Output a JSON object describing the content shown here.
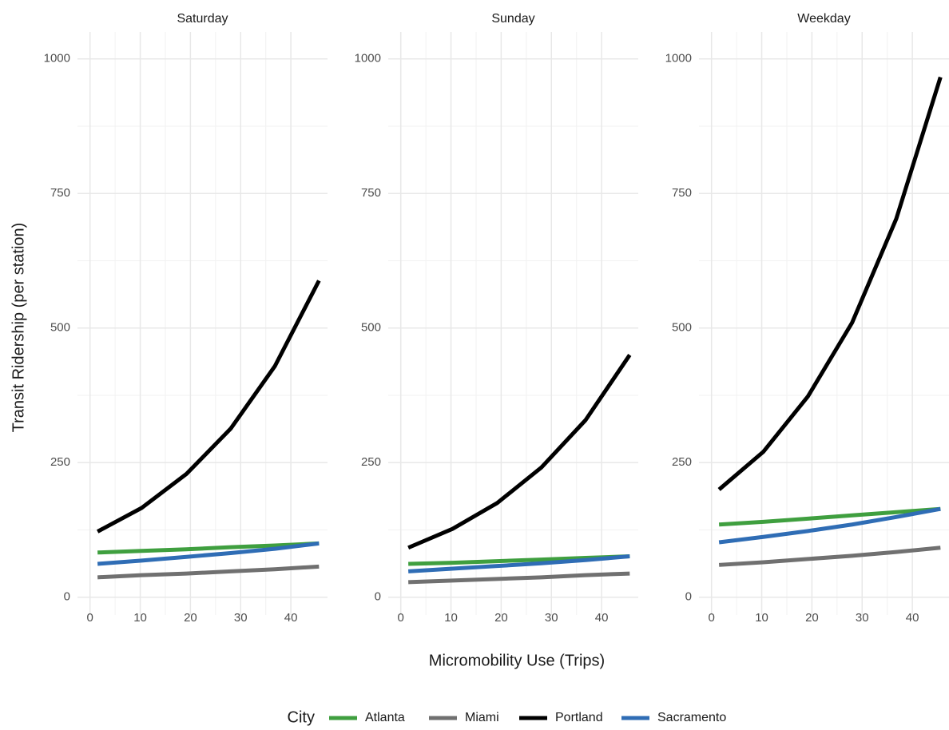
{
  "chart_data": [
    {
      "type": "line",
      "title": "Saturday",
      "x": [
        1.5,
        10.3,
        19.2,
        28,
        36.8,
        45.6
      ],
      "xlim": [
        -2.5,
        47.3
      ],
      "ylim": [
        -33,
        1050
      ],
      "xticks": [
        0,
        10,
        20,
        30,
        40
      ],
      "yticks": [
        0,
        250,
        500,
        750,
        1000
      ],
      "grid": true,
      "series": [
        {
          "name": "Atlanta",
          "color": "#3f9f3f",
          "values": [
            83,
            86,
            89,
            93,
            96,
            100
          ]
        },
        {
          "name": "Miami",
          "color": "#707070",
          "values": [
            37,
            41,
            44,
            48,
            52,
            57
          ]
        },
        {
          "name": "Portland",
          "color": "#000000",
          "values": [
            122,
            166,
            229,
            313,
            429,
            588
          ]
        },
        {
          "name": "Sacramento",
          "color": "#2f6db5",
          "values": [
            62,
            68,
            75,
            82,
            90,
            100
          ]
        }
      ]
    },
    {
      "type": "line",
      "title": "Sunday",
      "x": [
        1.5,
        10.3,
        19.2,
        28,
        36.8,
        45.6
      ],
      "xlim": [
        -2.5,
        47.3
      ],
      "ylim": [
        -33,
        1050
      ],
      "xticks": [
        0,
        10,
        20,
        30,
        40
      ],
      "yticks": [
        0,
        250,
        500,
        750,
        1000
      ],
      "grid": true,
      "series": [
        {
          "name": "Atlanta",
          "color": "#3f9f3f",
          "values": [
            62,
            64,
            67,
            70,
            73,
            76
          ]
        },
        {
          "name": "Miami",
          "color": "#707070",
          "values": [
            28,
            31,
            34,
            37,
            41,
            44
          ]
        },
        {
          "name": "Portland",
          "color": "#000000",
          "values": [
            92,
            127,
            175,
            241,
            329,
            450
          ]
        },
        {
          "name": "Sacramento",
          "color": "#2f6db5",
          "values": [
            48,
            53,
            58,
            63,
            69,
            76
          ]
        }
      ]
    },
    {
      "type": "line",
      "title": "Weekday",
      "x": [
        1.5,
        10.3,
        19.2,
        28,
        36.8,
        45.6
      ],
      "xlim": [
        -2.5,
        47.3
      ],
      "ylim": [
        -33,
        1050
      ],
      "xticks": [
        0,
        10,
        20,
        30,
        40
      ],
      "yticks": [
        0,
        250,
        500,
        750,
        1000
      ],
      "grid": true,
      "series": [
        {
          "name": "Atlanta",
          "color": "#3f9f3f",
          "values": [
            135,
            140,
            146,
            152,
            158,
            164
          ]
        },
        {
          "name": "Miami",
          "color": "#707070",
          "values": [
            60,
            65,
            71,
            77,
            84,
            92
          ]
        },
        {
          "name": "Portland",
          "color": "#000000",
          "values": [
            200,
            270,
            373,
            510,
            703,
            966
          ]
        },
        {
          "name": "Sacramento",
          "color": "#2f6db5",
          "values": [
            102,
            112,
            123,
            135,
            149,
            164
          ]
        }
      ]
    }
  ],
  "x_label": "Micromobility Use (Trips)",
  "y_label": "Transit Ridership (per station)",
  "legend": {
    "title": "City",
    "position": "bottom"
  }
}
